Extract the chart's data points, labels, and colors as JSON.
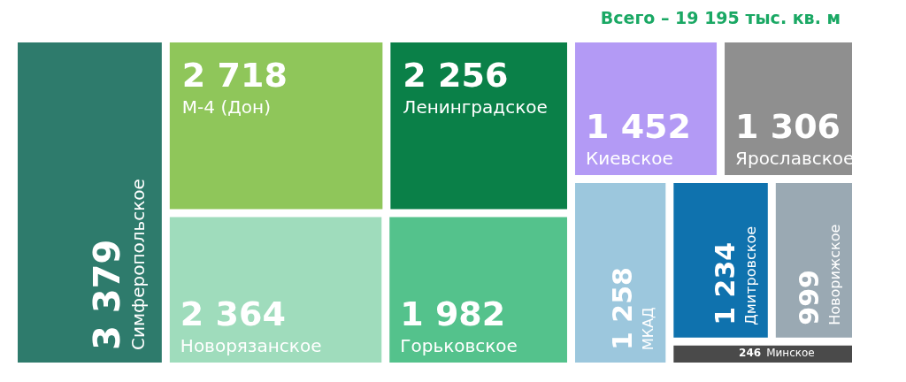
{
  "chart_data": {
    "type": "other",
    "title": "Всего – 19 195 тыс. кв. м",
    "categories": [
      "Симферопольское",
      "М-4 (Дон)",
      "Ленинградское",
      "Новорязанское",
      "Горьковское",
      "Киевское",
      "Ярославское",
      "МКАД",
      "Дмитровское",
      "Новорижское",
      "Минское"
    ],
    "values": [
      3379,
      2718,
      2256,
      2364,
      1982,
      1452,
      1306,
      1258,
      1234,
      999,
      246
    ],
    "colors": [
      "#2e7b6c",
      "#8fc65a",
      "#0a8048",
      "#9fdcbc",
      "#54c28c",
      "#b39af5",
      "#8f8f8f",
      "#9cc7dd",
      "#0f72ae",
      "#9aa9b3",
      "#4a4a4a"
    ],
    "data_labels": true
  }
}
